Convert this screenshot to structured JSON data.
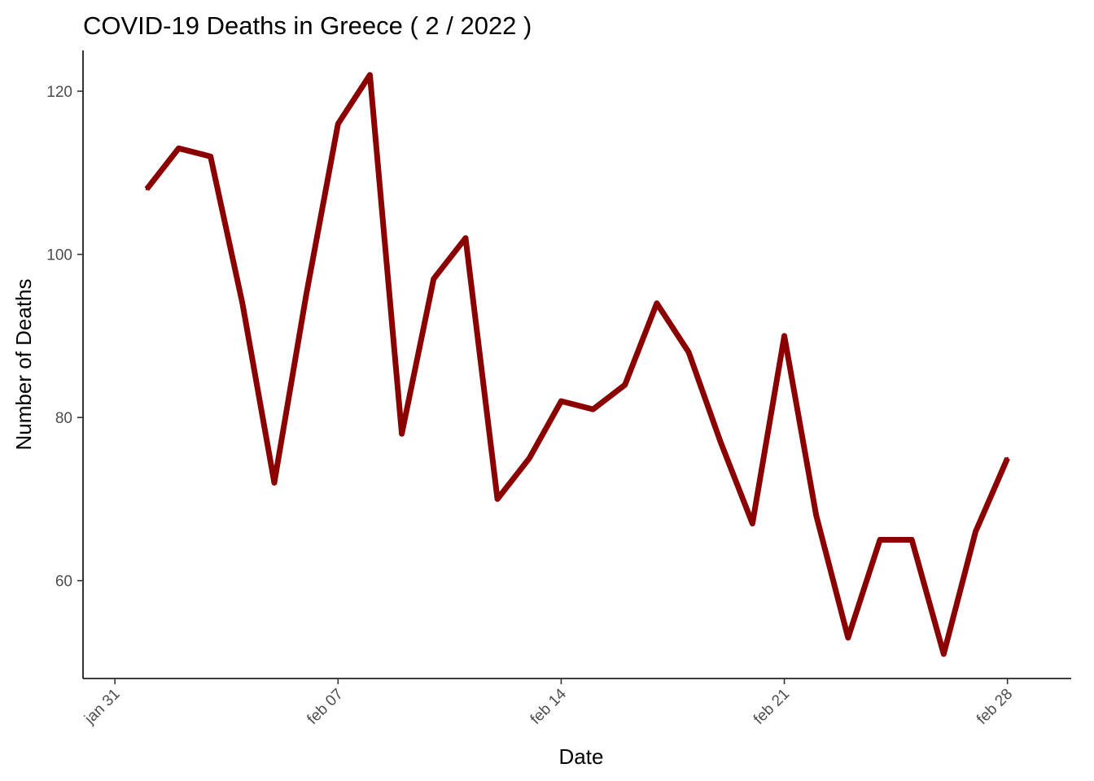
{
  "chart_data": {
    "type": "line",
    "title": "COVID-19 Deaths in Greece ( 2 / 2022 )",
    "xlabel": "Date",
    "ylabel": "Number of Deaths",
    "x_type": "date",
    "xlim": [
      "2022-01-30",
      "2022-03-02"
    ],
    "ylim": [
      48,
      125
    ],
    "x_ticks": [
      {
        "date": "2022-01-31",
        "label": "jan 31"
      },
      {
        "date": "2022-02-07",
        "label": "feb 07"
      },
      {
        "date": "2022-02-14",
        "label": "feb 14"
      },
      {
        "date": "2022-02-21",
        "label": "feb 21"
      },
      {
        "date": "2022-02-28",
        "label": "feb 28"
      }
    ],
    "y_ticks": [
      {
        "value": 60,
        "label": "60"
      },
      {
        "value": 80,
        "label": "80"
      },
      {
        "value": 100,
        "label": "100"
      },
      {
        "value": 120,
        "label": "120"
      }
    ],
    "grid": false,
    "legend": "none",
    "series": [
      {
        "color": "#8b0000",
        "x": [
          "2022-02-01",
          "2022-02-02",
          "2022-02-03",
          "2022-02-04",
          "2022-02-05",
          "2022-02-06",
          "2022-02-07",
          "2022-02-08",
          "2022-02-09",
          "2022-02-10",
          "2022-02-11",
          "2022-02-12",
          "2022-02-13",
          "2022-02-14",
          "2022-02-15",
          "2022-02-16",
          "2022-02-17",
          "2022-02-18",
          "2022-02-19",
          "2022-02-20",
          "2022-02-21",
          "2022-02-22",
          "2022-02-23",
          "2022-02-24",
          "2022-02-25",
          "2022-02-26",
          "2022-02-27",
          "2022-02-28"
        ],
        "values": [
          108,
          113,
          112,
          94,
          72,
          95,
          116,
          122,
          78,
          97,
          102,
          70,
          75,
          82,
          81,
          84,
          94,
          88,
          77,
          67,
          90,
          68,
          53,
          65,
          65,
          51,
          66,
          75
        ]
      }
    ]
  }
}
